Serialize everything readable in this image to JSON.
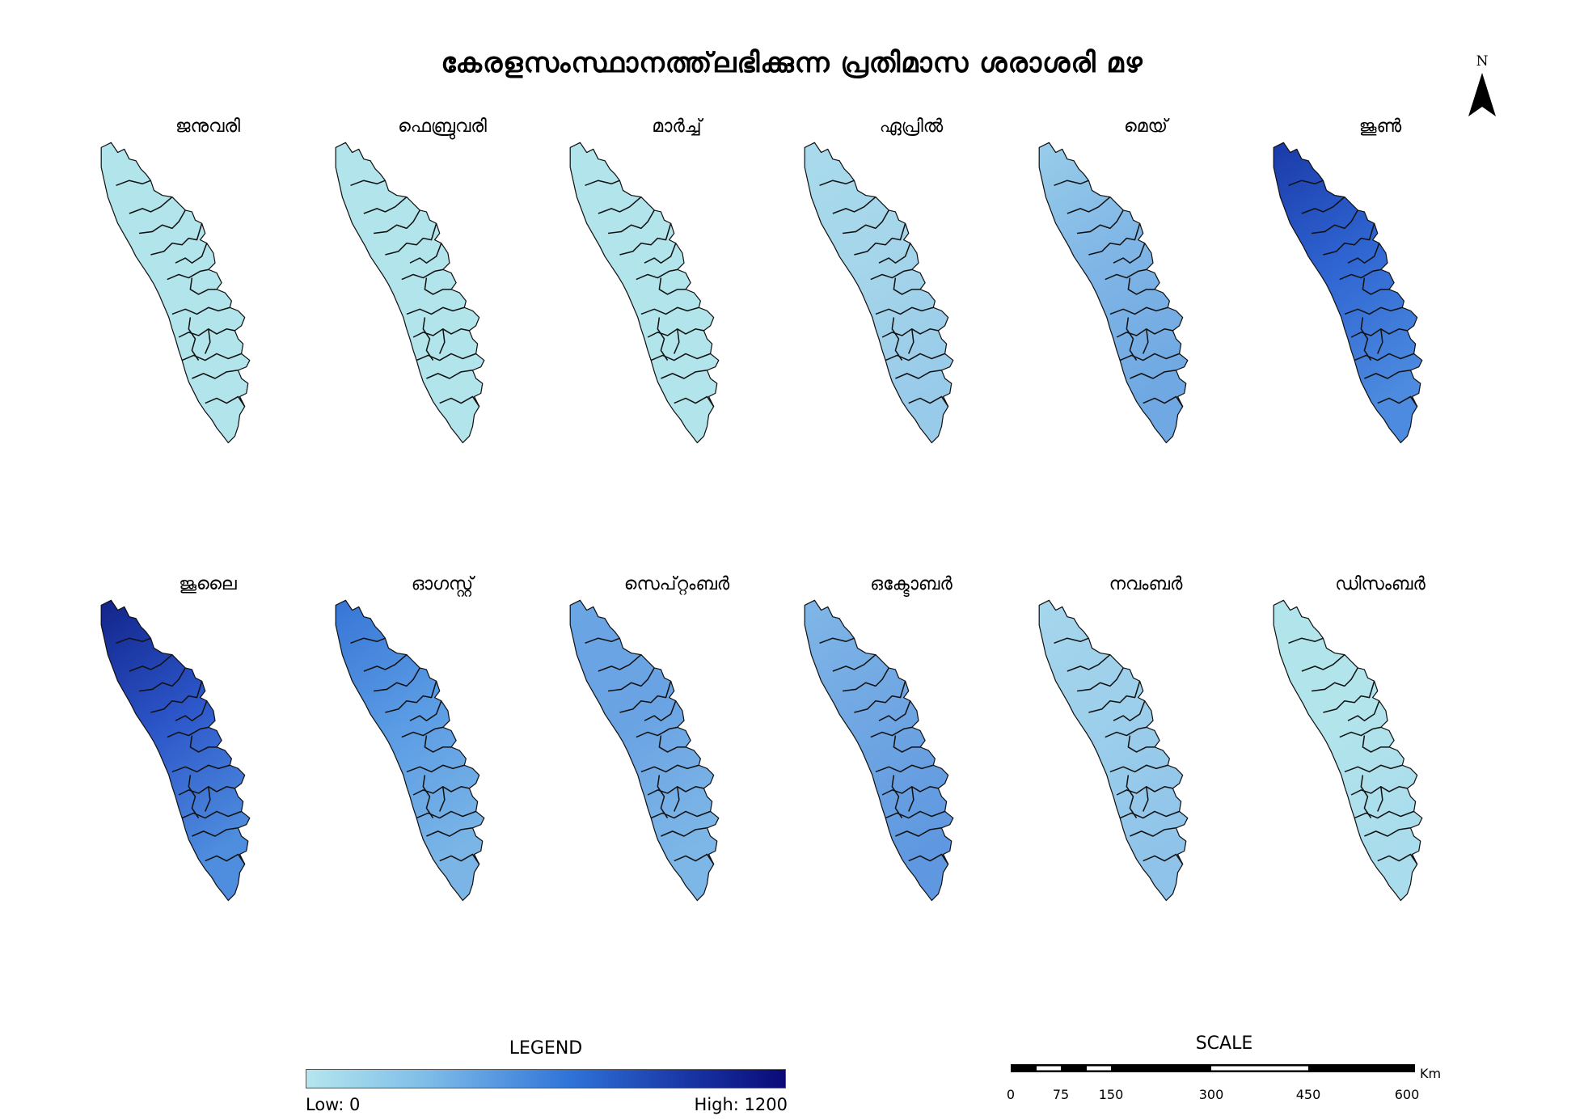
{
  "title": "കേരളസംസ്ഥാനത്ത്‌ലഭിക്കുന്ന പ്രതിമാസ ശരാശരി മഴ",
  "north_arrow": {
    "label": "N",
    "icon": "north-arrow-icon"
  },
  "months": [
    {
      "label": "ജനുവരി",
      "north_color": "#b2e4ec",
      "mid_color": "#b2e4ec",
      "south_color": "#b2e4ec"
    },
    {
      "label": "ഫെബ്രുവരി",
      "north_color": "#b2e4ec",
      "mid_color": "#b2e4ec",
      "south_color": "#b2e4ec"
    },
    {
      "label": "മാർച്ച്",
      "north_color": "#b2e4ec",
      "mid_color": "#b2e4ec",
      "south_color": "#b2e4ec"
    },
    {
      "label": "ഏപ്രിൽ",
      "north_color": "#a8dbec",
      "mid_color": "#a5d5ea",
      "south_color": "#98cbea"
    },
    {
      "label": "മെയ്",
      "north_color": "#98cde9",
      "mid_color": "#7fb5e6",
      "south_color": "#6fa8e2"
    },
    {
      "label": "ജൂൺ",
      "north_color": "#1a3aa8",
      "mid_color": "#2f65d2",
      "south_color": "#4c8bdf"
    },
    {
      "label": "ജൂലൈ",
      "north_color": "#12248a",
      "mid_color": "#2c56c9",
      "south_color": "#4f8ede"
    },
    {
      "label": "ഓഗസ്റ്റ്",
      "north_color": "#3775d6",
      "mid_color": "#5a9be4",
      "south_color": "#7ab5e6"
    },
    {
      "label": "സെപ്റ്റംബർ",
      "north_color": "#6aa5e4",
      "mid_color": "#6aa3e3",
      "south_color": "#7db7e7"
    },
    {
      "label": "ഒക്ടോബർ",
      "north_color": "#80b7e7",
      "mid_color": "#6fa6e3",
      "south_color": "#5f98e0"
    },
    {
      "label": "നവംബർ",
      "north_color": "#a6d6ec",
      "mid_color": "#9ccfeb",
      "south_color": "#8fc3e9"
    },
    {
      "label": "ഡിസംബർ",
      "north_color": "#b2e4ec",
      "mid_color": "#b2e4ec",
      "south_color": "#a9dcec"
    }
  ],
  "legend": {
    "title": "LEGEND",
    "low_label": "Low: 0",
    "high_label": "High: 1200",
    "low_value": 0,
    "high_value": 1200,
    "color_low": "#b4e6ee",
    "color_high": "#0a0a78"
  },
  "scale": {
    "title": "SCALE",
    "unit": "Km",
    "ticks": [
      "0",
      "75",
      "150",
      "300",
      "450",
      "600"
    ]
  }
}
